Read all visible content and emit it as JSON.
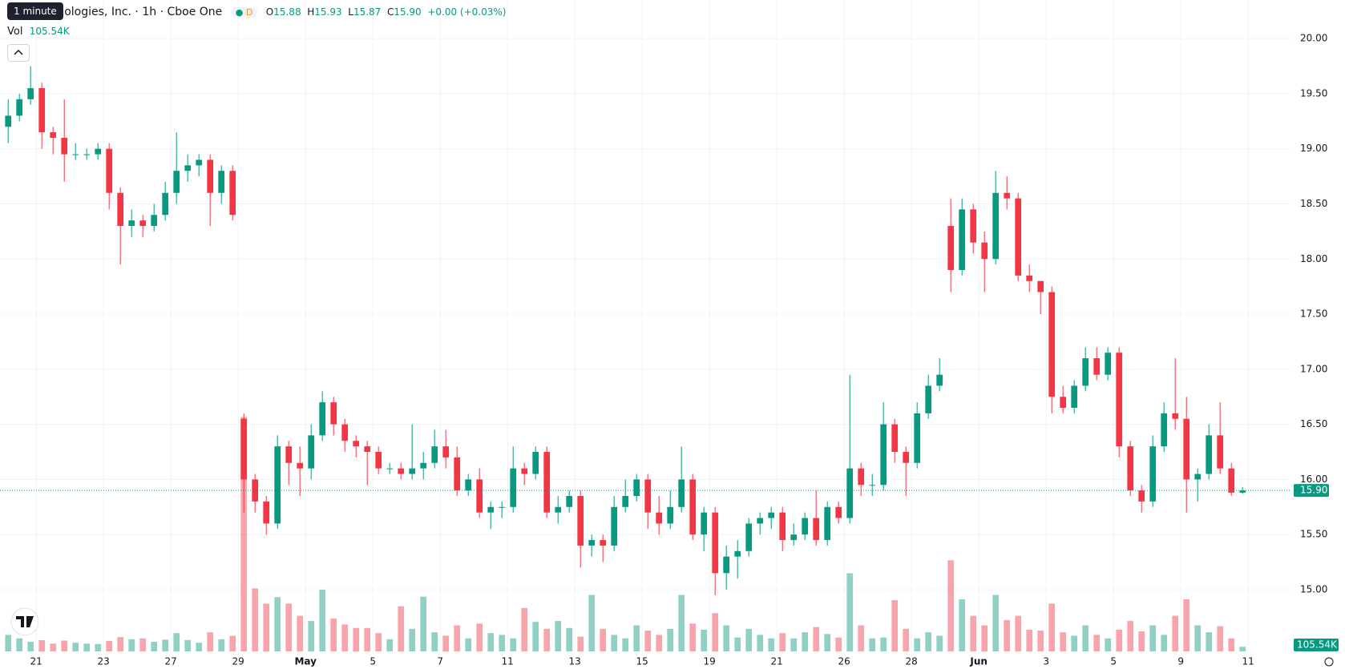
{
  "chart_data": {
    "type": "candlestick",
    "interval_tooltip": "1 minute",
    "symbol_title": "Technologies, Inc. · 1h · Cboe One",
    "badge": "D",
    "ohlc": {
      "open_label": "O",
      "open": 15.88,
      "high_label": "H",
      "high": 15.93,
      "low_label": "L",
      "low": 15.87,
      "close_label": "C",
      "close": 15.9,
      "change": "+0.00 (+0.03%)"
    },
    "volume_label": "Vol",
    "volume_value": "105.54K",
    "last_price_label": "15.90",
    "up_color": "#089981",
    "down_color": "#f23645",
    "grid": true,
    "ylim": [
      14.44,
      20.35
    ],
    "yticks": [
      {
        "value": 15,
        "label": "15.00"
      },
      {
        "value": 15.5,
        "label": "15.50"
      },
      {
        "value": 16,
        "label": "16.00"
      },
      {
        "value": 16.5,
        "label": "16.50"
      },
      {
        "value": 17,
        "label": "17.00"
      },
      {
        "value": 17.5,
        "label": "17.50"
      },
      {
        "value": 18,
        "label": "18.00"
      },
      {
        "value": 18.5,
        "label": "18.50"
      },
      {
        "value": 19,
        "label": "19.00"
      },
      {
        "value": 19.5,
        "label": "19.50"
      },
      {
        "value": 20,
        "label": "20.00"
      }
    ],
    "y2lim": [
      0,
      6000
    ],
    "xticks": [
      {
        "value": 3,
        "label": "21"
      },
      {
        "value": 9,
        "label": "23"
      },
      {
        "value": 15,
        "label": "27"
      },
      {
        "value": 21,
        "label": "29"
      },
      {
        "value": 27,
        "label": "May"
      },
      {
        "value": 33,
        "label": "5"
      },
      {
        "value": 39,
        "label": "7"
      },
      {
        "value": 45,
        "label": "11"
      },
      {
        "value": 51,
        "label": "13"
      },
      {
        "value": 57,
        "label": "15"
      },
      {
        "value": 63,
        "label": "19"
      },
      {
        "value": 69,
        "label": "21"
      },
      {
        "value": 75,
        "label": "26"
      },
      {
        "value": 81,
        "label": "28"
      },
      {
        "value": 87,
        "label": "Jun"
      },
      {
        "value": 93,
        "label": "3"
      },
      {
        "value": 99,
        "label": "5"
      },
      {
        "value": 105,
        "label": "9"
      },
      {
        "value": 111,
        "label": "11"
      }
    ],
    "open": [
      19.2,
      19.3,
      19.45,
      19.55,
      19.15,
      19.1,
      18.95,
      18.95,
      18.95,
      19.0,
      18.6,
      18.3,
      18.35,
      18.3,
      18.4,
      18.6,
      18.8,
      18.85,
      18.9,
      18.6,
      18.8,
      16.55,
      16.0,
      15.8,
      15.6,
      16.3,
      16.15,
      16.1,
      16.4,
      16.7,
      16.5,
      16.35,
      16.3,
      16.25,
      16.1,
      16.1,
      16.05,
      16.1,
      16.15,
      16.3,
      16.2,
      15.9,
      16.0,
      15.7,
      15.75,
      15.75,
      16.1,
      16.05,
      16.25,
      15.7,
      15.75,
      15.85,
      15.4,
      15.45,
      15.4,
      15.75,
      15.85,
      16.0,
      15.7,
      15.6,
      15.75,
      16.0,
      15.5,
      15.7,
      15.15,
      15.3,
      15.35,
      15.6,
      15.65,
      15.7,
      15.45,
      15.5,
      15.65,
      15.45,
      15.75,
      15.65,
      16.1,
      15.95,
      15.95,
      16.5,
      16.25,
      16.15,
      16.6,
      16.85,
      18.3,
      17.9,
      18.45,
      18.15,
      18.0,
      18.6,
      18.55,
      17.85,
      17.8,
      17.7,
      16.75,
      16.65,
      16.85,
      17.1,
      16.95,
      17.15,
      16.3,
      15.9,
      15.8,
      16.3,
      16.6,
      16.55,
      16.0,
      16.05,
      16.4,
      16.1,
      15.88
    ],
    "high": [
      19.45,
      19.5,
      19.75,
      19.6,
      19.2,
      19.45,
      19.05,
      19.0,
      19.05,
      19.05,
      18.65,
      18.45,
      18.4,
      18.5,
      18.7,
      19.15,
      18.95,
      18.95,
      18.95,
      18.85,
      18.85,
      16.6,
      16.05,
      15.85,
      16.4,
      16.35,
      16.3,
      16.5,
      16.8,
      16.75,
      16.55,
      16.4,
      16.35,
      16.3,
      16.15,
      16.15,
      16.5,
      16.25,
      16.45,
      16.45,
      16.3,
      16.05,
      16.1,
      15.8,
      15.8,
      16.3,
      16.15,
      16.3,
      16.3,
      15.85,
      15.9,
      15.9,
      15.5,
      15.5,
      15.85,
      16.0,
      16.05,
      16.05,
      15.85,
      15.9,
      16.3,
      16.05,
      15.75,
      15.75,
      15.4,
      15.45,
      15.65,
      15.7,
      15.75,
      15.75,
      15.6,
      15.7,
      15.9,
      15.8,
      15.8,
      16.95,
      16.15,
      16.05,
      16.7,
      16.55,
      16.3,
      16.7,
      16.95,
      17.1,
      18.55,
      18.55,
      18.5,
      18.25,
      18.8,
      18.75,
      18.6,
      17.95,
      17.8,
      17.75,
      16.85,
      16.9,
      17.2,
      17.2,
      17.2,
      17.2,
      16.35,
      15.95,
      16.4,
      16.7,
      17.1,
      16.75,
      16.1,
      16.5,
      16.7,
      16.15,
      15.93
    ],
    "low": [
      19.05,
      19.25,
      19.4,
      19.0,
      18.95,
      18.7,
      18.9,
      18.9,
      18.9,
      18.45,
      17.95,
      18.2,
      18.2,
      18.25,
      18.35,
      18.5,
      18.7,
      18.75,
      18.3,
      18.5,
      18.35,
      15.7,
      15.7,
      15.5,
      15.55,
      15.95,
      15.85,
      16.0,
      16.35,
      16.4,
      16.25,
      16.2,
      15.95,
      16.05,
      16.05,
      16.0,
      16.0,
      16.0,
      16.1,
      16.1,
      15.85,
      15.85,
      15.65,
      15.55,
      15.65,
      15.7,
      15.95,
      16.0,
      15.65,
      15.6,
      15.7,
      15.2,
      15.3,
      15.25,
      15.35,
      15.7,
      15.8,
      15.55,
      15.5,
      15.55,
      15.7,
      15.45,
      15.35,
      14.95,
      15.0,
      15.1,
      15.3,
      15.5,
      15.55,
      15.35,
      15.4,
      15.45,
      15.4,
      15.4,
      15.6,
      15.6,
      15.85,
      15.85,
      15.9,
      16.15,
      15.85,
      16.1,
      16.55,
      16.8,
      17.7,
      17.85,
      18.05,
      17.7,
      17.95,
      18.45,
      17.8,
      17.7,
      17.5,
      16.6,
      16.6,
      16.6,
      16.8,
      16.9,
      16.9,
      16.2,
      15.85,
      15.7,
      15.75,
      16.25,
      16.45,
      15.7,
      15.8,
      16.0,
      16.05,
      15.85,
      15.87
    ],
    "close": [
      19.3,
      19.45,
      19.55,
      19.15,
      19.1,
      18.95,
      18.95,
      18.95,
      19.0,
      18.6,
      18.3,
      18.35,
      18.3,
      18.4,
      18.6,
      18.8,
      18.85,
      18.9,
      18.6,
      18.8,
      18.4,
      16.0,
      15.8,
      15.6,
      16.3,
      16.15,
      16.1,
      16.4,
      16.7,
      16.5,
      16.35,
      16.3,
      16.25,
      16.1,
      16.1,
      16.05,
      16.1,
      16.15,
      16.3,
      16.2,
      15.9,
      16.0,
      15.7,
      15.75,
      15.75,
      16.1,
      16.05,
      16.25,
      15.7,
      15.75,
      15.85,
      15.4,
      15.45,
      15.4,
      15.75,
      15.85,
      16.0,
      15.7,
      15.6,
      15.75,
      16.0,
      15.5,
      15.7,
      15.15,
      15.3,
      15.35,
      15.6,
      15.65,
      15.7,
      15.45,
      15.5,
      15.65,
      15.45,
      15.75,
      15.65,
      16.1,
      15.95,
      15.95,
      16.5,
      16.25,
      16.15,
      16.6,
      16.85,
      16.95,
      17.9,
      18.45,
      18.15,
      18.0,
      18.6,
      18.55,
      17.85,
      17.8,
      17.7,
      16.75,
      16.65,
      16.85,
      17.1,
      16.95,
      17.15,
      16.3,
      15.9,
      15.8,
      16.3,
      16.6,
      16.55,
      16.0,
      16.05,
      16.4,
      16.1,
      15.88,
      15.9
    ],
    "volume": [
      380,
      300,
      220,
      260,
      180,
      250,
      200,
      180,
      170,
      240,
      330,
      280,
      300,
      220,
      270,
      420,
      260,
      200,
      440,
      280,
      360,
      5400,
      1450,
      1100,
      1250,
      1100,
      820,
      700,
      1420,
      760,
      620,
      540,
      540,
      420,
      280,
      1040,
      520,
      1260,
      440,
      360,
      600,
      300,
      640,
      420,
      380,
      300,
      1000,
      680,
      520,
      700,
      540,
      340,
      1300,
      520,
      380,
      300,
      600,
      480,
      380,
      520,
      1300,
      640,
      500,
      880,
      600,
      320,
      520,
      380,
      300,
      420,
      300,
      440,
      560,
      400,
      320,
      1800,
      600,
      300,
      320,
      1180,
      520,
      300,
      440,
      360,
      2100,
      1200,
      820,
      600,
      1300,
      720,
      820,
      500,
      480,
      1100,
      440,
      360,
      600,
      380,
      300,
      500,
      700,
      460,
      600,
      380,
      820,
      1200,
      600,
      440,
      580,
      300,
      106
    ]
  }
}
